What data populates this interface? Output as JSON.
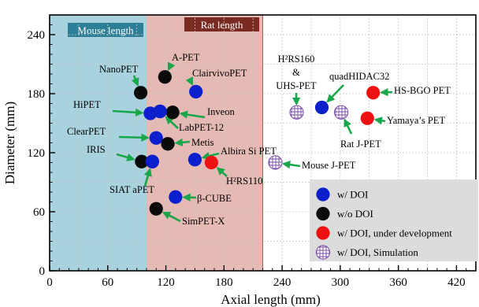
{
  "chart_data": {
    "type": "scatter",
    "xlabel": "Axial length (mm)",
    "ylabel": "Diameter (mm)",
    "xlim": [
      0,
      440
    ],
    "ylim": [
      0,
      260
    ],
    "xticks": [
      "0",
      "60",
      "120",
      "180",
      "240",
      "300",
      "360",
      "420"
    ],
    "yticks": [
      "0",
      "60",
      "120",
      "180",
      "240"
    ],
    "grid": true,
    "regions": [
      {
        "name": "Mouse length",
        "x_range": [
          0,
          100
        ],
        "color": "#a8d3de"
      },
      {
        "name": "Rat length",
        "x_range": [
          0,
          220
        ],
        "color": "#e5b9b4"
      }
    ],
    "legend": {
      "position": "bottom-right",
      "entries": [
        {
          "label": "w/ DOI",
          "category": "doi"
        },
        {
          "label": "w/o DOI",
          "category": "nodoi"
        },
        {
          "label": "w/ DOI, under development",
          "category": "dev"
        },
        {
          "label": "w/ DOI, Simulation",
          "category": "sim"
        }
      ]
    },
    "categories": {
      "doi": {
        "fill": "#0b1fcc"
      },
      "nodoi": {
        "fill": "#0a0a0a"
      },
      "dev": {
        "fill": "#ee1111"
      },
      "sim": {
        "fill": "#ffffff",
        "stroke": "#7a4ba8"
      }
    },
    "points": [
      {
        "label": "A-PET",
        "x": 119,
        "y": 197,
        "category": "nodoi"
      },
      {
        "label": "NanoPET",
        "x": 94,
        "y": 181,
        "category": "nodoi"
      },
      {
        "label": "ClairvivoPET",
        "x": 151,
        "y": 182,
        "category": "doi"
      },
      {
        "label": "HiPET",
        "x": 104,
        "y": 160,
        "category": "doi"
      },
      {
        "label": "",
        "x": 114,
        "y": 162,
        "category": "doi"
      },
      {
        "label": "Inveon",
        "x": 127,
        "y": 161,
        "category": "nodoi"
      },
      {
        "label": "LabPET-12",
        "x": 114,
        "y": 162,
        "category": "doi"
      },
      {
        "label": "ClearPET",
        "x": 110,
        "y": 135,
        "category": "doi"
      },
      {
        "label": "Metis",
        "x": 122,
        "y": 129,
        "category": "nodoi"
      },
      {
        "label": "Albira Si PET",
        "x": 150,
        "y": 113,
        "category": "doi"
      },
      {
        "label": "IRIS",
        "x": 95,
        "y": 111,
        "category": "nodoi"
      },
      {
        "label": "",
        "x": 106,
        "y": 111,
        "category": "doi"
      },
      {
        "label": "H²RS110",
        "x": 167,
        "y": 110,
        "category": "dev"
      },
      {
        "label": "SIAT aPET",
        "x": 106,
        "y": 111,
        "category": "doi"
      },
      {
        "label": "β-CUBE",
        "x": 130,
        "y": 75,
        "category": "doi"
      },
      {
        "label": "SimPET-X",
        "x": 110,
        "y": 63,
        "category": "nodoi"
      },
      {
        "label": "H²RS160\n&\nUHS-PET",
        "x": 255,
        "y": 161,
        "category": "sim"
      },
      {
        "label": "quadHIDAC32",
        "x": 281,
        "y": 166,
        "category": "doi"
      },
      {
        "label": "Rat J-PET",
        "x": 301,
        "y": 161,
        "category": "sim"
      },
      {
        "label": "HS-BGO PET",
        "x": 334,
        "y": 181,
        "category": "dev"
      },
      {
        "label": "Yamaya’s PET",
        "x": 328,
        "y": 155,
        "category": "dev"
      },
      {
        "label": "Mouse J-PET",
        "x": 233,
        "y": 110,
        "category": "sim"
      }
    ]
  }
}
